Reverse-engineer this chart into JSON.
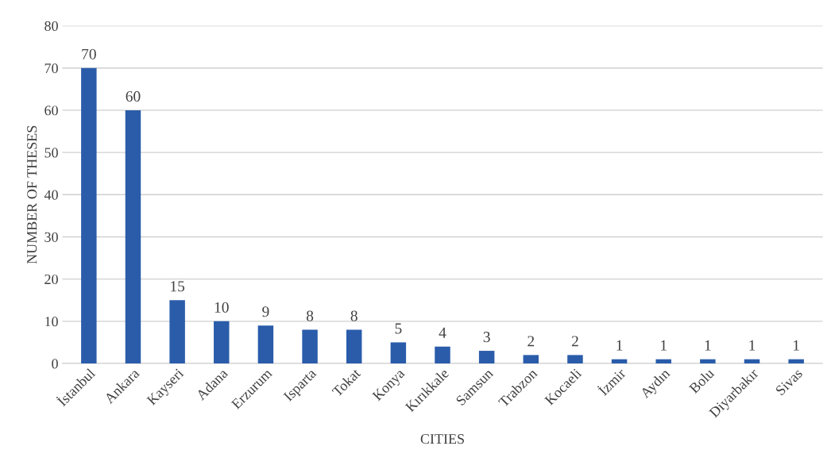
{
  "chart_data": {
    "type": "bar",
    "xlabel": "CITIES",
    "ylabel": "NUMBER OF THESES",
    "categories": [
      "İstanbul",
      "Ankara",
      "Kayseri",
      "Adana",
      "Erzurum",
      "Isparta",
      "Tokat",
      "Konya",
      "Kırıkkale",
      "Samsun",
      "Trabzon",
      "Kocaeli",
      "İzmir",
      "Aydın",
      "Bolu",
      "Diyarbakır",
      "Sivas"
    ],
    "values": [
      70,
      60,
      15,
      10,
      9,
      8,
      8,
      5,
      4,
      3,
      2,
      2,
      1,
      1,
      1,
      1,
      1
    ],
    "color": "#2a5caa",
    "ylim": [
      0,
      80
    ],
    "yticks": [
      0,
      10,
      20,
      30,
      40,
      50,
      60,
      70,
      80
    ],
    "grid": "y",
    "data_labels": true
  }
}
